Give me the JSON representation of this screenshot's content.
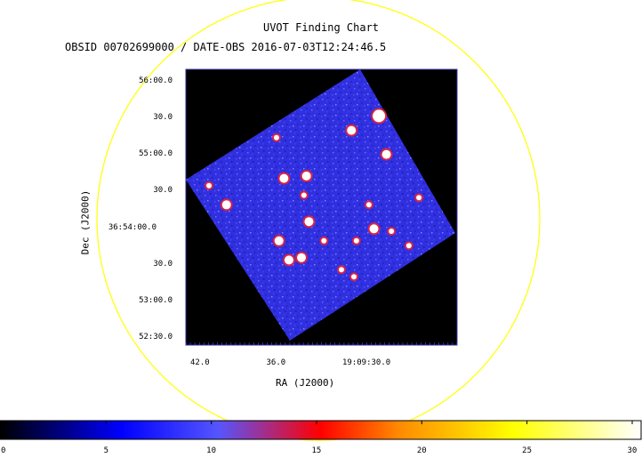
{
  "chart_data": {
    "type": "heatmap",
    "title": "UVOT Finding Chart",
    "subtitle": "OBSID 00702699000 / DATE-OBS 2016-07-03T12:24:46.5",
    "xlabel": "RA (J2000)",
    "ylabel": "Dec (J2000)",
    "x_ticks": [
      {
        "label": "42.0",
        "value": 42.0
      },
      {
        "label": "36.0",
        "value": 36.0
      },
      {
        "label": "19:09:30.0",
        "value": 30.0
      }
    ],
    "y_ticks": [
      {
        "label": "56:00.0",
        "value": 0
      },
      {
        "label": "30.0",
        "value": 1
      },
      {
        "label": "55:00.0",
        "value": 2
      },
      {
        "label": "30.0",
        "value": 3
      },
      {
        "label": "36:54:00.0",
        "value": 4
      },
      {
        "label": "30.0",
        "value": 5
      },
      {
        "label": "53:00.0",
        "value": 6
      },
      {
        "label": "52:30.0",
        "value": 7
      }
    ],
    "colorbar": {
      "range": [
        0,
        30
      ],
      "ticks": [
        {
          "label": "0",
          "value": 0
        },
        {
          "label": "5",
          "value": 5
        },
        {
          "label": "10",
          "value": 10
        },
        {
          "label": "15",
          "value": 15
        },
        {
          "label": "20",
          "value": 20
        },
        {
          "label": "25",
          "value": 25
        },
        {
          "label": "30",
          "value": 30
        }
      ],
      "colors": [
        "#000000",
        "#0000ff",
        "#5555ff",
        "#ff0000",
        "#ff8800",
        "#ffff00",
        "#ffffff"
      ]
    },
    "circle_color": "#ffff00",
    "field_color": "#3030e0",
    "sources": [
      {
        "u": 0.73,
        "v": 0.12,
        "size": "large"
      },
      {
        "u": 0.62,
        "v": 0.18,
        "size": "medium"
      },
      {
        "u": 0.76,
        "v": 0.28,
        "size": "medium"
      },
      {
        "u": 0.44,
        "v": 0.37,
        "size": "medium"
      },
      {
        "u": 0.35,
        "v": 0.38,
        "size": "medium"
      },
      {
        "u": 0.05,
        "v": 0.41,
        "size": "small"
      },
      {
        "u": 0.12,
        "v": 0.49,
        "size": "medium"
      },
      {
        "u": 0.45,
        "v": 0.56,
        "size": "medium"
      },
      {
        "u": 0.69,
        "v": 0.49,
        "size": "small"
      },
      {
        "u": 0.89,
        "v": 0.46,
        "size": "small"
      },
      {
        "u": 0.71,
        "v": 0.59,
        "size": "medium"
      },
      {
        "u": 0.78,
        "v": 0.6,
        "size": "small"
      },
      {
        "u": 0.51,
        "v": 0.64,
        "size": "small"
      },
      {
        "u": 0.33,
        "v": 0.64,
        "size": "medium"
      },
      {
        "u": 0.64,
        "v": 0.64,
        "size": "small"
      },
      {
        "u": 0.42,
        "v": 0.71,
        "size": "medium"
      },
      {
        "u": 0.37,
        "v": 0.72,
        "size": "medium"
      },
      {
        "u": 0.85,
        "v": 0.66,
        "size": "small"
      },
      {
        "u": 0.58,
        "v": 0.76,
        "size": "small"
      },
      {
        "u": 0.63,
        "v": 0.79,
        "size": "small"
      },
      {
        "u": 0.32,
        "v": 0.21,
        "size": "small"
      },
      {
        "u": 0.43,
        "v": 0.45,
        "size": "small"
      }
    ]
  }
}
